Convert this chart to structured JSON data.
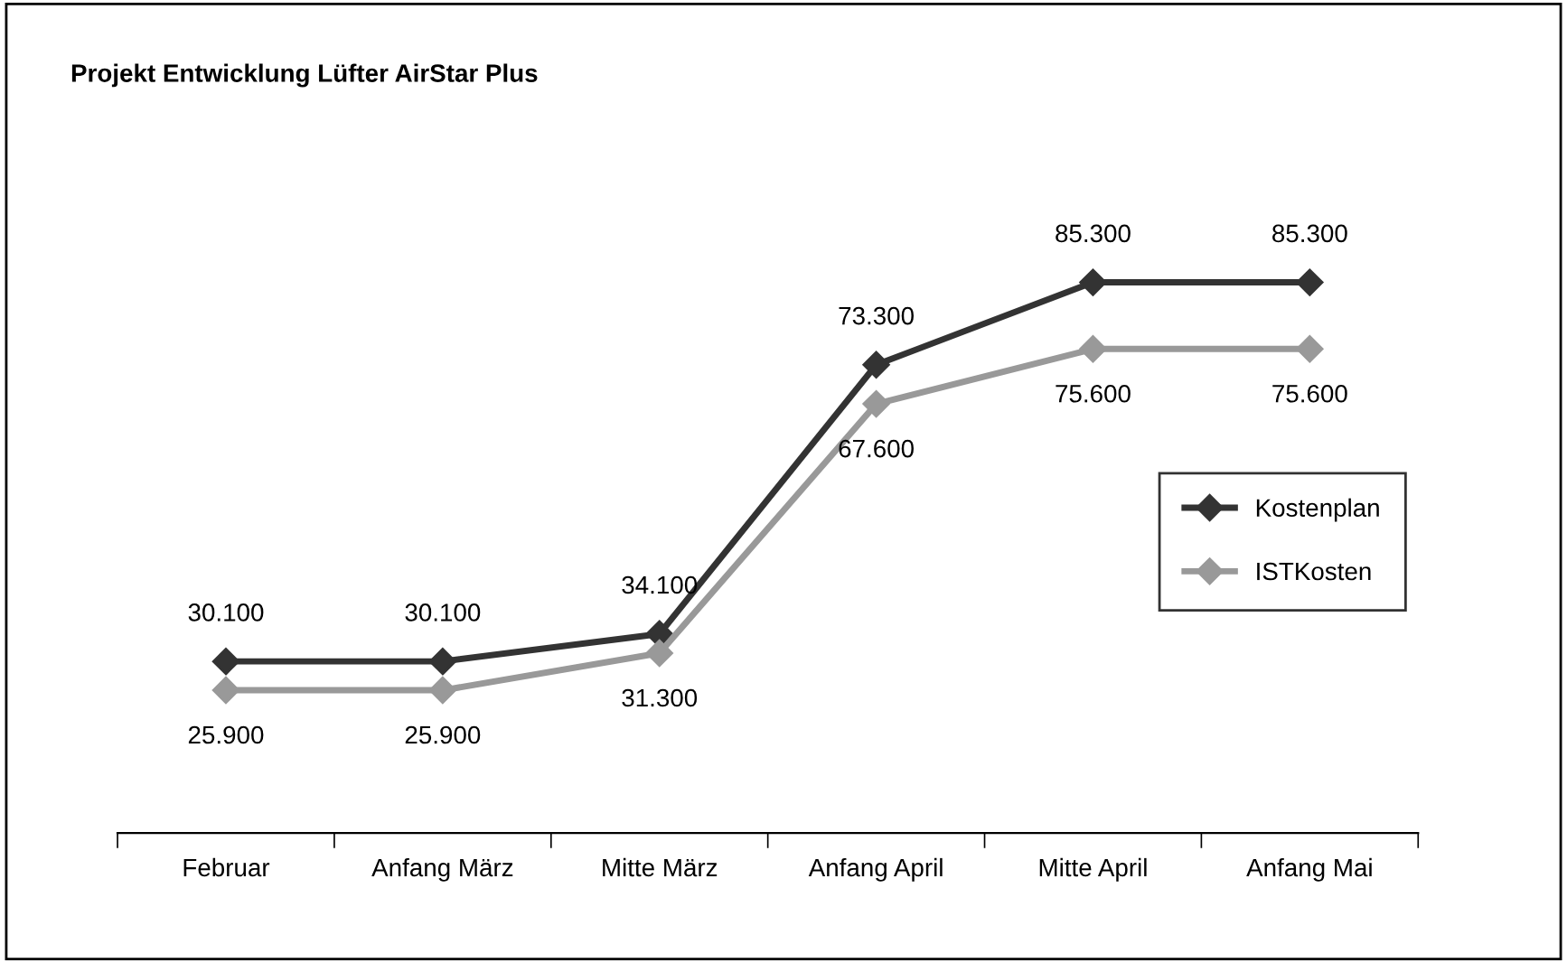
{
  "chart_data": {
    "type": "line",
    "title": "Projekt Entwicklung Lüfter AirStar Plus",
    "categories": [
      "Februar",
      "Anfang März",
      "Mitte März",
      "Anfang April",
      "Mitte April",
      "Anfang Mai"
    ],
    "series": [
      {
        "name": "Kostenplan",
        "color": "#333333",
        "values": [
          30100,
          30100,
          34100,
          73300,
          85300,
          85300
        ],
        "value_labels": [
          "30.100",
          "30.100",
          "34.100",
          "73.300",
          "85.300",
          "85.300"
        ]
      },
      {
        "name": "ISTKosten",
        "color": "#999999",
        "values": [
          25900,
          25900,
          31300,
          67600,
          75600,
          75600
        ],
        "value_labels": [
          "25.900",
          "25.900",
          "31.300",
          "67.600",
          "75.600",
          "75.600"
        ]
      }
    ],
    "marker": "diamond",
    "line_style": "solid",
    "legend": "right",
    "grid": false,
    "tick_labels": "x"
  }
}
